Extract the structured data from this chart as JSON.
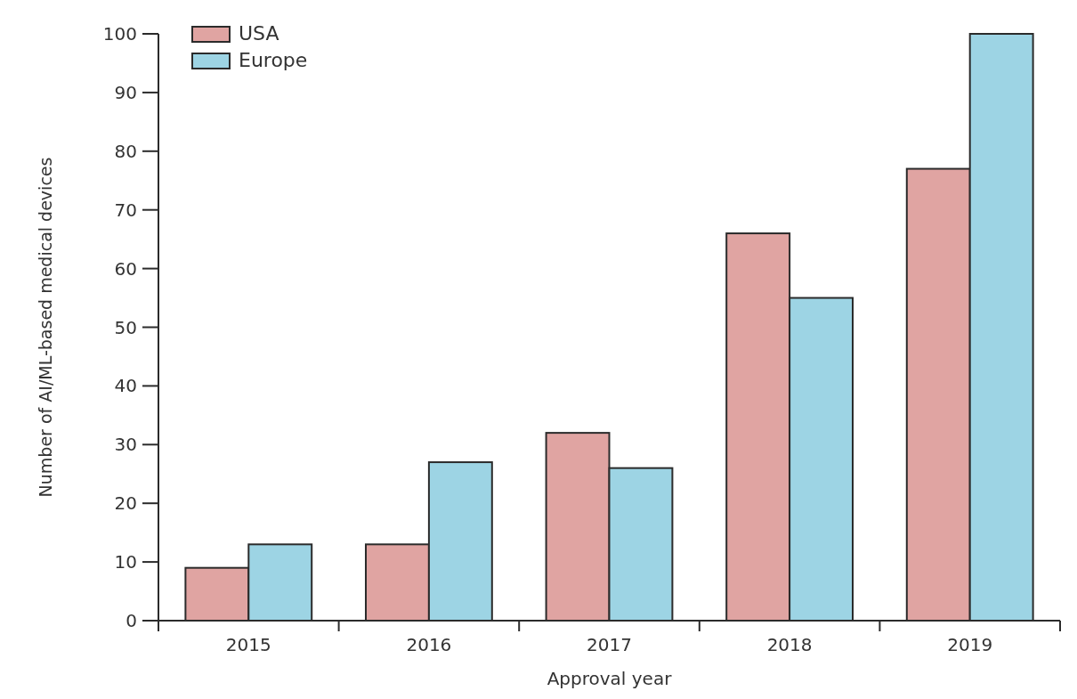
{
  "chart_data": {
    "type": "bar",
    "xlabel": "Approval year",
    "ylabel": "Number of AI/ML-based medical devices",
    "categories": [
      "2015",
      "2016",
      "2017",
      "2018",
      "2019"
    ],
    "series": [
      {
        "name": "USA",
        "color": "#e0a4a2",
        "values": [
          9,
          13,
          32,
          66,
          77
        ]
      },
      {
        "name": "Europe",
        "color": "#9dd4e4",
        "values": [
          13,
          27,
          26,
          55,
          100
        ]
      }
    ],
    "ylim": [
      0,
      100
    ],
    "yticks": [
      0,
      10,
      20,
      30,
      40,
      50,
      60,
      70,
      80,
      90,
      100
    ],
    "grid": false,
    "legend": "top left"
  }
}
